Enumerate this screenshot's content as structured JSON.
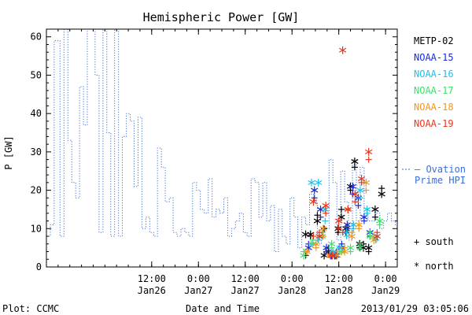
{
  "chart_data": {
    "type": "line",
    "title": "Hemispheric Power [GW]",
    "ylabel": "P [GW]",
    "xlabel": "Date and Time",
    "ylim": [
      0,
      62
    ],
    "xlim": [
      "2013-01-25T09:00",
      "2013-01-29T03:00"
    ],
    "y_ticks": [
      0,
      10,
      20,
      30,
      40,
      50,
      60
    ],
    "x_ticks": [
      {
        "t": "2013-01-26T12:00",
        "line1": "12:00",
        "line2": "Jan26"
      },
      {
        "t": "2013-01-27T00:00",
        "line1": "0:00",
        "line2": "Jan27"
      },
      {
        "t": "2013-01-27T12:00",
        "line1": "12:00",
        "line2": "Jan27"
      },
      {
        "t": "2013-01-28T00:00",
        "line1": "0:00",
        "line2": "Jan28"
      },
      {
        "t": "2013-01-28T12:00",
        "line1": "12:00",
        "line2": "Jan28"
      },
      {
        "t": "2013-01-29T00:00",
        "line1": "0:00",
        "line2": "Jan29"
      }
    ],
    "grid": false,
    "legend_position": "right",
    "ovation": {
      "name": "Ovation Prime HPI",
      "label_line1": "— Ovation",
      "label_line2": "Prime HPI",
      "color": "#3a6fd8",
      "style": "stepped dotted",
      "x": [
        "2013-01-25T09:00",
        "2013-01-25T10:00",
        "2013-01-25T11:00",
        "2013-01-25T12:30",
        "2013-01-25T13:30",
        "2013-01-25T14:30",
        "2013-01-25T15:30",
        "2013-01-25T16:30",
        "2013-01-25T17:30",
        "2013-01-25T18:30",
        "2013-01-25T19:30",
        "2013-01-25T20:30",
        "2013-01-25T21:30",
        "2013-01-25T22:30",
        "2013-01-25T23:30",
        "2013-01-26T00:30",
        "2013-01-26T01:30",
        "2013-01-26T02:30",
        "2013-01-26T03:30",
        "2013-01-26T04:30",
        "2013-01-26T05:30",
        "2013-01-26T06:30",
        "2013-01-26T07:30",
        "2013-01-26T08:30",
        "2013-01-26T09:30",
        "2013-01-26T10:30",
        "2013-01-26T11:30",
        "2013-01-26T12:30",
        "2013-01-26T13:30",
        "2013-01-26T14:30",
        "2013-01-26T15:30",
        "2013-01-26T16:30",
        "2013-01-26T17:30",
        "2013-01-26T18:30",
        "2013-01-26T19:30",
        "2013-01-26T20:30",
        "2013-01-26T21:30",
        "2013-01-26T22:30",
        "2013-01-26T23:30",
        "2013-01-27T00:30",
        "2013-01-27T01:30",
        "2013-01-27T02:30",
        "2013-01-27T03:30",
        "2013-01-27T04:30",
        "2013-01-27T05:30",
        "2013-01-27T06:30",
        "2013-01-27T07:30",
        "2013-01-27T08:30",
        "2013-01-27T09:30",
        "2013-01-27T10:30",
        "2013-01-27T11:30",
        "2013-01-27T12:30",
        "2013-01-27T13:30",
        "2013-01-27T14:30",
        "2013-01-27T15:30",
        "2013-01-27T16:30",
        "2013-01-27T17:30",
        "2013-01-27T18:30",
        "2013-01-27T19:30",
        "2013-01-27T20:30",
        "2013-01-27T21:30",
        "2013-01-27T22:30",
        "2013-01-27T23:30",
        "2013-01-28T00:30",
        "2013-01-28T01:30",
        "2013-01-28T02:30",
        "2013-01-28T03:30",
        "2013-01-28T04:30",
        "2013-01-28T05:30",
        "2013-01-28T06:30",
        "2013-01-28T07:30",
        "2013-01-28T08:30",
        "2013-01-28T09:30",
        "2013-01-28T10:30",
        "2013-01-28T11:30",
        "2013-01-28T12:30",
        "2013-01-28T13:30",
        "2013-01-28T14:30",
        "2013-01-28T15:30",
        "2013-01-28T16:30",
        "2013-01-28T17:30",
        "2013-01-28T18:30",
        "2013-01-28T19:30",
        "2013-01-28T20:30",
        "2013-01-28T21:30",
        "2013-01-28T22:30",
        "2013-01-28T23:30",
        "2013-01-29T00:30",
        "2013-01-29T01:30",
        "2013-01-29T02:30"
      ],
      "y": [
        8,
        11,
        59,
        8,
        63,
        33,
        22,
        18,
        47,
        37,
        63,
        63,
        50,
        9,
        63,
        35,
        8,
        63,
        8,
        34,
        40,
        38,
        21,
        39,
        10,
        13,
        9,
        8,
        31,
        26,
        17,
        18,
        9,
        8,
        10,
        9,
        8,
        22,
        20,
        15,
        14,
        23,
        13,
        15,
        14,
        18,
        8,
        10,
        12,
        14,
        9,
        8,
        23,
        22,
        13,
        22,
        12,
        16,
        4,
        15,
        8,
        6,
        18,
        13,
        5,
        13,
        11,
        19,
        17,
        6,
        9,
        10,
        28,
        22,
        7,
        25,
        17,
        7,
        28,
        12,
        26,
        14,
        12,
        12,
        14,
        10,
        12,
        14,
        12,
        11
      ]
    },
    "series": [
      {
        "name": "METP-02",
        "color": "#000000",
        "x": [
          "2013-01-28T03:30",
          "2013-01-28T04:45",
          "2013-01-28T06:30",
          "2013-01-28T08:15",
          "2013-01-28T09:20",
          "2013-01-28T10:15",
          "2013-01-28T11:00",
          "2013-01-28T11:50",
          "2013-01-28T12:40",
          "2013-01-28T13:50",
          "2013-01-28T15:00",
          "2013-01-28T16:05",
          "2013-01-28T17:20",
          "2013-01-28T18:20",
          "2013-01-28T19:40",
          "2013-01-28T21:20",
          "2013-01-28T23:00"
        ],
        "north": [
          8.5,
          8.5,
          12,
          3,
          4,
          3,
          3,
          10,
          13,
          10,
          21,
          27.5,
          6,
          5,
          5,
          15,
          19
        ],
        "south": [
          3,
          8,
          13.5,
          10,
          5,
          3.5,
          3,
          9,
          15,
          9,
          20,
          26,
          5,
          6,
          4,
          13,
          20.5
        ]
      },
      {
        "name": "NOAA-15",
        "color": "#1a2bd4",
        "x": [
          "2013-01-28T04:15",
          "2013-01-28T05:45",
          "2013-01-28T07:20",
          "2013-01-28T08:50",
          "2013-01-28T10:00",
          "2013-01-28T11:20",
          "2013-01-28T12:45",
          "2013-01-28T14:10",
          "2013-01-28T15:35",
          "2013-01-28T17:00",
          "2013-01-28T18:30",
          "2013-01-28T20:00"
        ],
        "north": [
          5,
          20,
          15,
          5,
          3,
          3,
          5,
          11,
          21,
          18,
          13,
          9
        ],
        "south": [
          6,
          18,
          13,
          4,
          3,
          4,
          6,
          10,
          19,
          16,
          12,
          8
        ]
      },
      {
        "name": "NOAA-16",
        "color": "#22c0e8",
        "x": [
          "2013-01-28T05:00",
          "2013-01-28T06:45",
          "2013-01-28T08:30",
          "2013-01-28T10:30",
          "2013-01-28T12:15",
          "2013-01-28T14:00",
          "2013-01-28T15:45",
          "2013-01-28T17:30",
          "2013-01-28T19:15",
          "2013-01-28T21:30"
        ],
        "north": [
          22,
          22,
          15,
          4,
          5,
          9,
          11,
          20,
          15,
          7.5
        ],
        "south": [
          6,
          7,
          12,
          3,
          5,
          8,
          10,
          18,
          14,
          7
        ]
      },
      {
        "name": "NOAA-17",
        "color": "#3ee06a",
        "x": [
          "2013-01-28T03:00",
          "2013-01-28T05:20",
          "2013-01-28T07:45",
          "2013-01-28T10:10",
          "2013-01-28T12:40",
          "2013-01-28T15:00",
          "2013-01-28T17:30",
          "2013-01-28T20:00",
          "2013-01-28T22:30"
        ],
        "north": [
          3,
          6,
          8,
          6,
          4,
          5,
          5,
          8,
          12
        ],
        "south": [
          4,
          7,
          9,
          5,
          4,
          4,
          6,
          9,
          11
        ]
      },
      {
        "name": "NOAA-18",
        "color": "#f0961c",
        "x": [
          "2013-01-28T03:50",
          "2013-01-28T06:10",
          "2013-01-28T08:00",
          "2013-01-28T09:45",
          "2013-01-28T11:40",
          "2013-01-28T13:30",
          "2013-01-28T15:20",
          "2013-01-28T17:10",
          "2013-01-28T19:00",
          "2013-01-28T21:00"
        ],
        "north": [
          4,
          6,
          10,
          3,
          3,
          4,
          8,
          11,
          22,
          7
        ],
        "south": [
          4,
          5,
          8,
          3,
          4,
          5,
          9,
          10,
          20,
          8
        ]
      },
      {
        "name": "NOAA-19",
        "color": "#e8381c",
        "x": [
          "2013-01-28T05:30",
          "2013-01-28T07:00",
          "2013-01-28T08:40",
          "2013-01-28T10:20",
          "2013-01-28T12:00",
          "2013-01-28T13:00",
          "2013-01-28T14:20",
          "2013-01-28T16:10",
          "2013-01-28T17:50",
          "2013-01-28T19:40",
          "2013-01-28T21:50"
        ],
        "north": [
          17,
          8,
          16,
          3,
          12,
          56.5,
          15,
          19,
          23,
          30,
          8
        ],
        "south": [
          8,
          9,
          14,
          3,
          10,
          9,
          15,
          17,
          22,
          28,
          9
        ]
      }
    ]
  },
  "legend": {
    "south_label": "+ south",
    "north_label": "* north"
  },
  "footer": {
    "plot_credit": "Plot: CCMC",
    "axis_title": "Date and Time",
    "timestamp": "2013/01/29 03:05:06"
  }
}
